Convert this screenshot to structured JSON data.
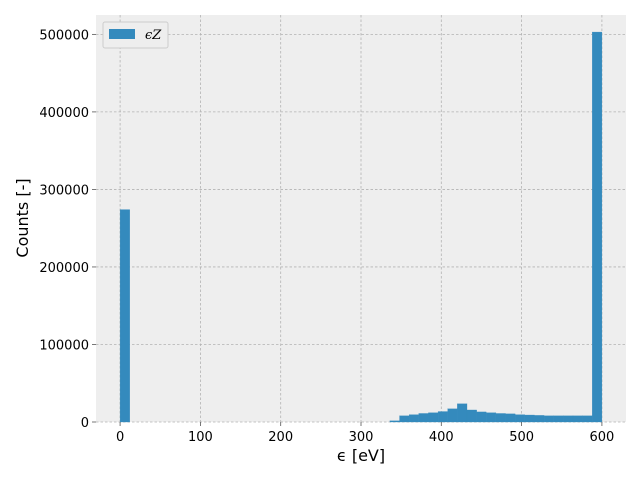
{
  "chart_data": {
    "type": "bar",
    "title": "",
    "xlabel": "ϵ [eV]",
    "ylabel": "Counts [-]",
    "xlim": [
      -30,
      630
    ],
    "ylim": [
      0,
      525000
    ],
    "xticks": [
      0,
      100,
      200,
      300,
      400,
      500,
      600
    ],
    "yticks": [
      0,
      100000,
      200000,
      300000,
      400000,
      500000
    ],
    "grid": true,
    "legend_placement": "top-left",
    "colors": {
      "bar": "#348abd",
      "plot_background": "#eeeeee",
      "grid": "#b2b2b2",
      "axes_edge": "#bcbcbc"
    },
    "series": [
      {
        "name": "ϵ_Z",
        "legend_label": "ϵZ",
        "bin_width": 12,
        "bins": [
          {
            "x0": 0,
            "count": 274000
          },
          {
            "x0": 336,
            "count": 1500
          },
          {
            "x0": 348,
            "count": 8000
          },
          {
            "x0": 360,
            "count": 9500
          },
          {
            "x0": 372,
            "count": 11000
          },
          {
            "x0": 384,
            "count": 12000
          },
          {
            "x0": 396,
            "count": 13500
          },
          {
            "x0": 408,
            "count": 17000
          },
          {
            "x0": 420,
            "count": 23500
          },
          {
            "x0": 432,
            "count": 15500
          },
          {
            "x0": 444,
            "count": 13000
          },
          {
            "x0": 456,
            "count": 12000
          },
          {
            "x0": 468,
            "count": 11000
          },
          {
            "x0": 480,
            "count": 10500
          },
          {
            "x0": 492,
            "count": 9500
          },
          {
            "x0": 504,
            "count": 9000
          },
          {
            "x0": 516,
            "count": 8500
          },
          {
            "x0": 528,
            "count": 8000
          },
          {
            "x0": 540,
            "count": 8000
          },
          {
            "x0": 552,
            "count": 8000
          },
          {
            "x0": 564,
            "count": 8000
          },
          {
            "x0": 576,
            "count": 8000
          },
          {
            "x0": 588,
            "count": 503000
          }
        ]
      }
    ]
  }
}
